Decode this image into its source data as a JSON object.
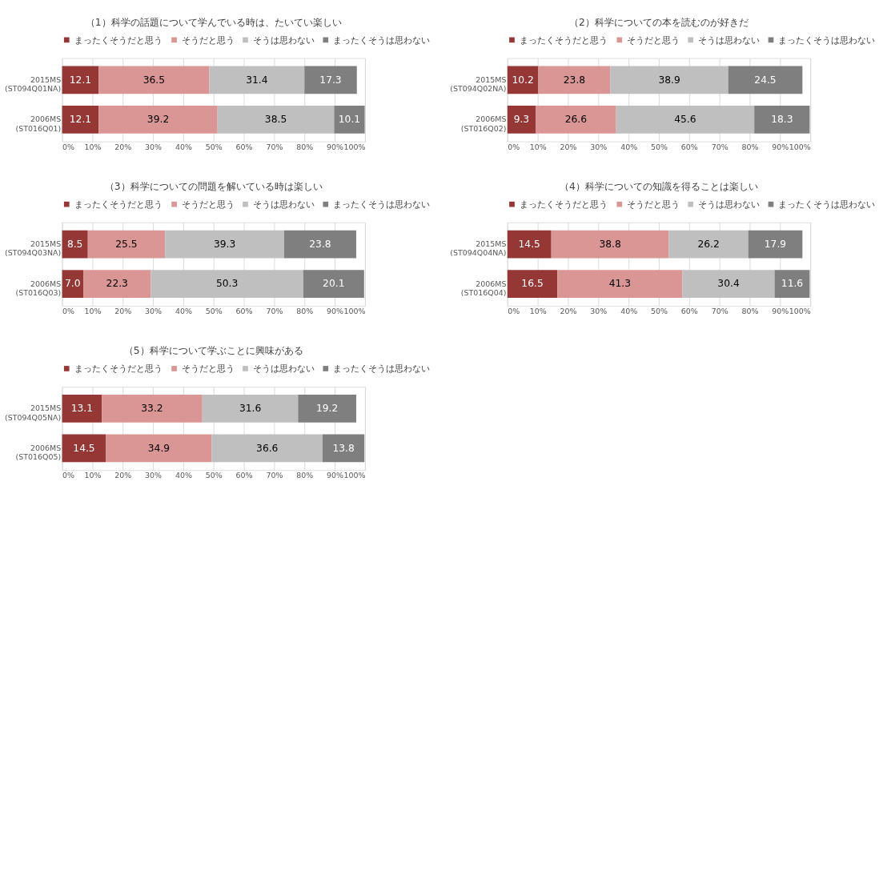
{
  "chart_data": [
    {
      "type": "bar",
      "orientation": "horizontal",
      "stacked": true,
      "data_labels": true,
      "grid": "x",
      "legend": "top",
      "title": "（1）科学の話題について学んでいる時は、たいてい楽しい",
      "categories": [
        "2015MS\n(ST094Q01NA)",
        "2006MS\n(ST016Q01)"
      ],
      "xlim": [
        0,
        100
      ],
      "xticks": [
        {
          "value": 0,
          "label": "0%"
        },
        {
          "value": 10,
          "label": "10%"
        },
        {
          "value": 20,
          "label": "20%"
        },
        {
          "value": 30,
          "label": "30%"
        },
        {
          "value": 40,
          "label": "40%"
        },
        {
          "value": 50,
          "label": "50%"
        },
        {
          "value": 60,
          "label": "60%"
        },
        {
          "value": 70,
          "label": "70%"
        },
        {
          "value": 80,
          "label": "80%"
        },
        {
          "value": 90,
          "label": "90%"
        },
        {
          "value": 100,
          "label": "100%"
        }
      ],
      "series": [
        {
          "name": "まったくそうだと思う",
          "color": "#953735",
          "values": [
            12.1,
            12.1
          ]
        },
        {
          "name": "そうだと思う",
          "color": "#d99694",
          "values": [
            36.5,
            39.2
          ]
        },
        {
          "name": "そうは思わない",
          "color": "#bfbfbf",
          "values": [
            31.4,
            38.5
          ]
        },
        {
          "name": "まったくそうは思わない",
          "color": "#7f7f7f",
          "values": [
            17.3,
            10.1
          ]
        }
      ]
    },
    {
      "type": "bar",
      "orientation": "horizontal",
      "stacked": true,
      "data_labels": true,
      "grid": "x",
      "legend": "top",
      "title": "（2）科学についての本を読むのが好きだ",
      "categories": [
        "2015MS\n(ST094Q02NA)",
        "2006MS\n(ST016Q02)"
      ],
      "xlim": [
        0,
        100
      ],
      "xticks": [
        {
          "value": 0,
          "label": "0%"
        },
        {
          "value": 10,
          "label": "10%"
        },
        {
          "value": 20,
          "label": "20%"
        },
        {
          "value": 30,
          "label": "30%"
        },
        {
          "value": 40,
          "label": "40%"
        },
        {
          "value": 50,
          "label": "50%"
        },
        {
          "value": 60,
          "label": "60%"
        },
        {
          "value": 70,
          "label": "70%"
        },
        {
          "value": 80,
          "label": "80%"
        },
        {
          "value": 90,
          "label": "90%"
        },
        {
          "value": 100,
          "label": "100%"
        }
      ],
      "series": [
        {
          "name": "まったくそうだと思う",
          "color": "#953735",
          "values": [
            10.2,
            9.3
          ]
        },
        {
          "name": "そうだと思う",
          "color": "#d99694",
          "values": [
            23.8,
            26.6
          ]
        },
        {
          "name": "そうは思わない",
          "color": "#bfbfbf",
          "values": [
            38.9,
            45.6
          ]
        },
        {
          "name": "まったくそうは思わない",
          "color": "#7f7f7f",
          "values": [
            24.5,
            18.3
          ]
        }
      ]
    },
    {
      "type": "bar",
      "orientation": "horizontal",
      "stacked": true,
      "data_labels": true,
      "grid": "x",
      "legend": "top",
      "title": "（3）科学についての問題を解いている時は楽しい",
      "categories": [
        "2015MS\n(ST094Q03NA)",
        "2006MS\n(ST016Q03)"
      ],
      "xlim": [
        0,
        100
      ],
      "xticks": [
        {
          "value": 0,
          "label": "0%"
        },
        {
          "value": 10,
          "label": "10%"
        },
        {
          "value": 20,
          "label": "20%"
        },
        {
          "value": 30,
          "label": "30%"
        },
        {
          "value": 40,
          "label": "40%"
        },
        {
          "value": 50,
          "label": "50%"
        },
        {
          "value": 60,
          "label": "60%"
        },
        {
          "value": 70,
          "label": "70%"
        },
        {
          "value": 80,
          "label": "80%"
        },
        {
          "value": 90,
          "label": "90%"
        },
        {
          "value": 100,
          "label": "100%"
        }
      ],
      "series": [
        {
          "name": "まったくそうだと思う",
          "color": "#953735",
          "values": [
            8.5,
            7.0
          ],
          "value_labels": [
            "8.5",
            "7.0"
          ]
        },
        {
          "name": "そうだと思う",
          "color": "#d99694",
          "values": [
            25.5,
            22.3
          ]
        },
        {
          "name": "そうは思わない",
          "color": "#bfbfbf",
          "values": [
            39.3,
            50.3
          ]
        },
        {
          "name": "まったくそうは思わない",
          "color": "#7f7f7f",
          "values": [
            23.8,
            20.1
          ]
        }
      ]
    },
    {
      "type": "bar",
      "orientation": "horizontal",
      "stacked": true,
      "data_labels": true,
      "grid": "x",
      "legend": "top",
      "title": "（4）科学についての知識を得ることは楽しい",
      "categories": [
        "2015MS\n(ST094Q04NA)",
        "2006MS\n(ST016Q04)"
      ],
      "xlim": [
        0,
        100
      ],
      "xticks": [
        {
          "value": 0,
          "label": "0%"
        },
        {
          "value": 10,
          "label": "10%"
        },
        {
          "value": 20,
          "label": "20%"
        },
        {
          "value": 30,
          "label": "30%"
        },
        {
          "value": 40,
          "label": "40%"
        },
        {
          "value": 50,
          "label": "50%"
        },
        {
          "value": 60,
          "label": "60%"
        },
        {
          "value": 70,
          "label": "70%"
        },
        {
          "value": 80,
          "label": "80%"
        },
        {
          "value": 90,
          "label": "90%"
        },
        {
          "value": 100,
          "label": "100%"
        }
      ],
      "series": [
        {
          "name": "まったくそうだと思う",
          "color": "#953735",
          "values": [
            14.5,
            16.5
          ]
        },
        {
          "name": "そうだと思う",
          "color": "#d99694",
          "values": [
            38.8,
            41.3
          ]
        },
        {
          "name": "そうは思わない",
          "color": "#bfbfbf",
          "values": [
            26.2,
            30.4
          ]
        },
        {
          "name": "まったくそうは思わない",
          "color": "#7f7f7f",
          "values": [
            17.9,
            11.6
          ]
        }
      ]
    },
    {
      "type": "bar",
      "orientation": "horizontal",
      "stacked": true,
      "data_labels": true,
      "grid": "x",
      "legend": "top",
      "title": "（5）科学について学ぶことに興味がある",
      "categories": [
        "2015MS\n(ST094Q05NA)",
        "2006MS\n(ST016Q05)"
      ],
      "xlim": [
        0,
        100
      ],
      "xticks": [
        {
          "value": 0,
          "label": "0%"
        },
        {
          "value": 10,
          "label": "10%"
        },
        {
          "value": 20,
          "label": "20%"
        },
        {
          "value": 30,
          "label": "30%"
        },
        {
          "value": 40,
          "label": "40%"
        },
        {
          "value": 50,
          "label": "50%"
        },
        {
          "value": 60,
          "label": "60%"
        },
        {
          "value": 70,
          "label": "70%"
        },
        {
          "value": 80,
          "label": "80%"
        },
        {
          "value": 90,
          "label": "90%"
        },
        {
          "value": 100,
          "label": "100%"
        }
      ],
      "series": [
        {
          "name": "まったくそうだと思う",
          "color": "#953735",
          "values": [
            13.1,
            14.5
          ]
        },
        {
          "name": "そうだと思う",
          "color": "#d99694",
          "values": [
            33.2,
            34.9
          ]
        },
        {
          "name": "そうは思わない",
          "color": "#bfbfbf",
          "values": [
            31.6,
            36.6
          ]
        },
        {
          "name": "まったくそうは思わない",
          "color": "#7f7f7f",
          "values": [
            19.2,
            13.8
          ]
        }
      ]
    }
  ]
}
